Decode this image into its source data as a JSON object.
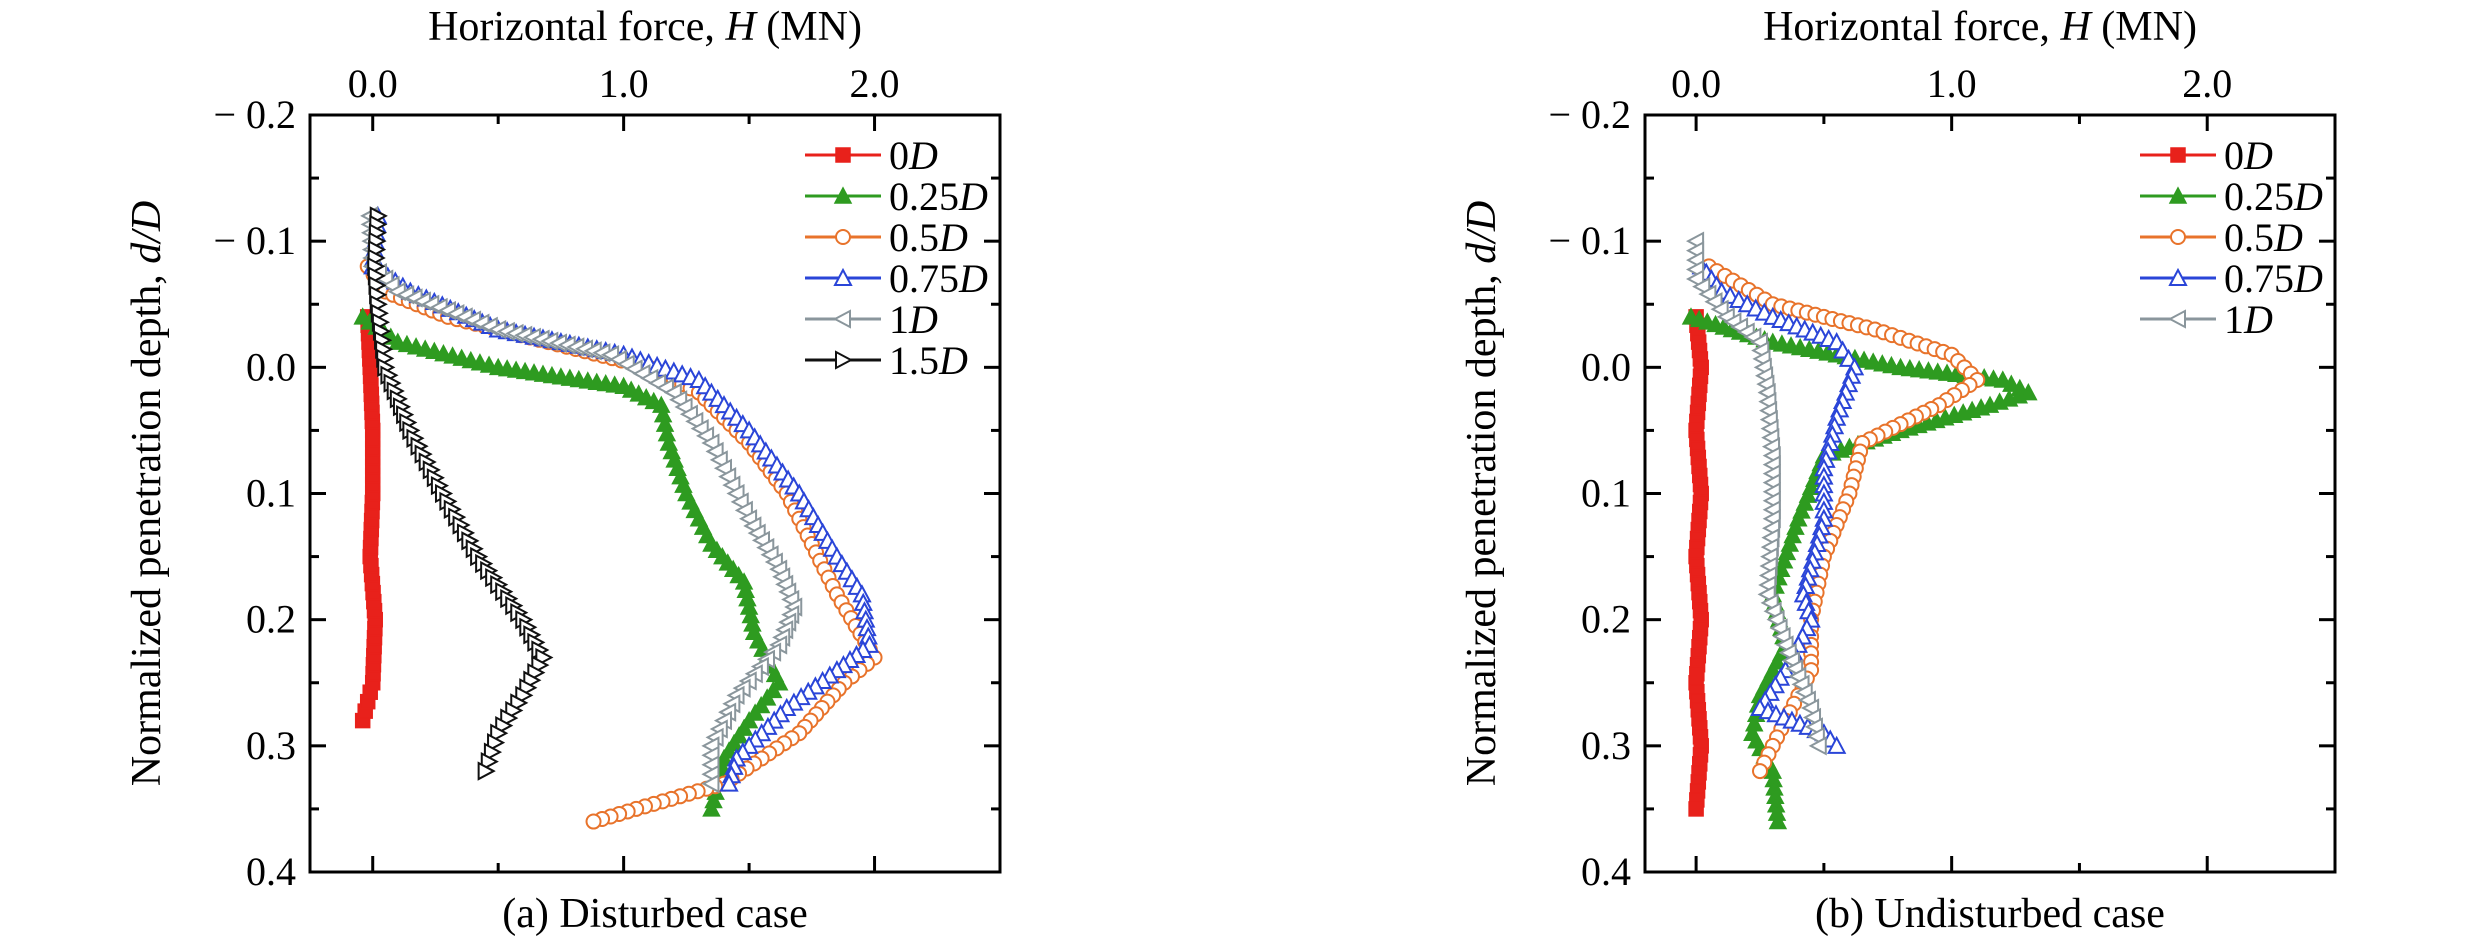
{
  "chart_data": [
    {
      "type": "line",
      "caption": "(a) Disturbed case",
      "xlabel": "Horizontal force, H (MN)",
      "ylabel": "Normalized penetration depth, d/D",
      "xlim": [
        -0.25,
        2.5
      ],
      "ylim": [
        -0.2,
        0.4
      ],
      "x_axis_position": "top",
      "y_inverted": true,
      "xticks": [
        0.0,
        1.0,
        2.0
      ],
      "xtick_labels": [
        "0.0",
        "1.0",
        "2.0"
      ],
      "yticks": [
        -0.2,
        -0.1,
        0.0,
        0.1,
        0.2,
        0.3,
        0.4
      ],
      "ytick_labels": [
        "− 0.2",
        "− 0.1",
        "0.0",
        "0.1",
        "0.2",
        "0.3",
        "0.4"
      ],
      "grid": false,
      "legend_position": "top-right",
      "series": [
        {
          "name": "0D",
          "color": "#e8211b",
          "marker": "square",
          "points": [
            [
              -0.04,
              0.28
            ],
            [
              0.0,
              0.25
            ],
            [
              0.01,
              0.2
            ],
            [
              -0.01,
              0.15
            ],
            [
              0.0,
              0.1
            ],
            [
              0.0,
              0.05
            ],
            [
              -0.01,
              0.0
            ],
            [
              -0.02,
              -0.04
            ]
          ]
        },
        {
          "name": "0.25D",
          "color": "#2e9b20",
          "marker": "triangle-up",
          "points": [
            [
              -0.04,
              -0.04
            ],
            [
              0.1,
              -0.02
            ],
            [
              0.5,
              0.0
            ],
            [
              1.0,
              0.015
            ],
            [
              1.15,
              0.03
            ],
            [
              1.18,
              0.06
            ],
            [
              1.25,
              0.1
            ],
            [
              1.35,
              0.14
            ],
            [
              1.48,
              0.17
            ],
            [
              1.52,
              0.21
            ],
            [
              1.62,
              0.25
            ],
            [
              1.5,
              0.28
            ],
            [
              1.4,
              0.31
            ],
            [
              1.35,
              0.35
            ]
          ]
        },
        {
          "name": "0.5D",
          "color": "#e8732b",
          "marker": "circle-open",
          "points": [
            [
              -0.02,
              -0.08
            ],
            [
              0.05,
              -0.06
            ],
            [
              0.3,
              -0.04
            ],
            [
              0.7,
              -0.02
            ],
            [
              1.1,
              0.0
            ],
            [
              1.3,
              0.02
            ],
            [
              1.5,
              0.06
            ],
            [
              1.65,
              0.1
            ],
            [
              1.75,
              0.14
            ],
            [
              1.85,
              0.18
            ],
            [
              2.0,
              0.23
            ],
            [
              1.88,
              0.25
            ],
            [
              1.7,
              0.29
            ],
            [
              1.4,
              0.33
            ],
            [
              1.05,
              0.35
            ],
            [
              0.88,
              0.36
            ]
          ]
        },
        {
          "name": "0.75D",
          "color": "#2a45d8",
          "marker": "triangle-up-open",
          "points": [
            [
              0.02,
              -0.12
            ],
            [
              0.0,
              -0.08
            ],
            [
              0.15,
              -0.06
            ],
            [
              0.5,
              -0.03
            ],
            [
              1.0,
              -0.01
            ],
            [
              1.3,
              0.01
            ],
            [
              1.5,
              0.05
            ],
            [
              1.7,
              0.1
            ],
            [
              1.85,
              0.15
            ],
            [
              1.95,
              0.18
            ],
            [
              1.98,
              0.22
            ],
            [
              1.85,
              0.24
            ],
            [
              1.65,
              0.27
            ],
            [
              1.45,
              0.31
            ],
            [
              1.42,
              0.33
            ]
          ]
        },
        {
          "name": "1D",
          "color": "#8a969c",
          "marker": "triangle-left-open",
          "points": [
            [
              -0.01,
              -0.12
            ],
            [
              0.0,
              -0.08
            ],
            [
              0.1,
              -0.06
            ],
            [
              0.5,
              -0.03
            ],
            [
              0.95,
              -0.01
            ],
            [
              1.2,
              0.02
            ],
            [
              1.35,
              0.06
            ],
            [
              1.5,
              0.12
            ],
            [
              1.62,
              0.16
            ],
            [
              1.68,
              0.19
            ],
            [
              1.62,
              0.22
            ],
            [
              1.45,
              0.26
            ],
            [
              1.35,
              0.3
            ],
            [
              1.35,
              0.33
            ]
          ]
        },
        {
          "name": "1.5D",
          "color": "#111111",
          "marker": "triangle-right-open",
          "points": [
            [
              0.02,
              -0.12
            ],
            [
              0.01,
              -0.08
            ],
            [
              0.02,
              -0.05
            ],
            [
              0.05,
              0.0
            ],
            [
              0.15,
              0.05
            ],
            [
              0.28,
              0.1
            ],
            [
              0.42,
              0.15
            ],
            [
              0.6,
              0.2
            ],
            [
              0.68,
              0.23
            ],
            [
              0.6,
              0.26
            ],
            [
              0.5,
              0.29
            ],
            [
              0.45,
              0.32
            ]
          ]
        }
      ]
    },
    {
      "type": "line",
      "caption": "(b) Undisturbed case",
      "xlabel": "Horizontal force, H (MN)",
      "ylabel": "Normalized penetration depth, d/D",
      "xlim": [
        -0.2,
        2.5
      ],
      "ylim": [
        -0.2,
        0.4
      ],
      "x_axis_position": "top",
      "y_inverted": true,
      "xticks": [
        0.0,
        1.0,
        2.0
      ],
      "xtick_labels": [
        "0.0",
        "1.0",
        "2.0"
      ],
      "yticks": [
        -0.2,
        -0.1,
        0.0,
        0.1,
        0.2,
        0.3,
        0.4
      ],
      "ytick_labels": [
        "− 0.2",
        "− 0.1",
        "0.0",
        "0.1",
        "0.2",
        "0.3",
        "0.4"
      ],
      "grid": false,
      "legend_position": "top-right",
      "series": [
        {
          "name": "0D",
          "color": "#e8211b",
          "marker": "square",
          "points": [
            [
              0.0,
              -0.04
            ],
            [
              0.02,
              0.0
            ],
            [
              0.0,
              0.05
            ],
            [
              0.02,
              0.1
            ],
            [
              0.0,
              0.15
            ],
            [
              0.02,
              0.2
            ],
            [
              0.0,
              0.25
            ],
            [
              0.02,
              0.3
            ],
            [
              0.0,
              0.35
            ]
          ]
        },
        {
          "name": "0.25D",
          "color": "#2e9b20",
          "marker": "triangle-up",
          "points": [
            [
              -0.02,
              -0.04
            ],
            [
              0.3,
              -0.02
            ],
            [
              0.8,
              0.0
            ],
            [
              1.2,
              0.01
            ],
            [
              1.3,
              0.02
            ],
            [
              1.15,
              0.03
            ],
            [
              0.8,
              0.05
            ],
            [
              0.5,
              0.07
            ],
            [
              0.4,
              0.12
            ],
            [
              0.3,
              0.18
            ],
            [
              0.35,
              0.22
            ],
            [
              0.25,
              0.26
            ],
            [
              0.22,
              0.29
            ],
            [
              0.3,
              0.32
            ],
            [
              0.32,
              0.36
            ]
          ]
        },
        {
          "name": "0.5D",
          "color": "#e8732b",
          "marker": "circle-open",
          "points": [
            [
              0.05,
              -0.08
            ],
            [
              0.3,
              -0.05
            ],
            [
              0.7,
              -0.03
            ],
            [
              1.0,
              -0.01
            ],
            [
              1.1,
              0.01
            ],
            [
              0.95,
              0.03
            ],
            [
              0.65,
              0.06
            ],
            [
              0.6,
              0.1
            ],
            [
              0.5,
              0.15
            ],
            [
              0.45,
              0.2
            ],
            [
              0.45,
              0.24
            ],
            [
              0.35,
              0.28
            ],
            [
              0.25,
              0.32
            ]
          ]
        },
        {
          "name": "0.75D",
          "color": "#2a45d8",
          "marker": "triangle-up-open",
          "points": [
            [
              0.02,
              -0.08
            ],
            [
              0.1,
              -0.06
            ],
            [
              0.3,
              -0.04
            ],
            [
              0.55,
              -0.02
            ],
            [
              0.62,
              0.0
            ],
            [
              0.55,
              0.04
            ],
            [
              0.5,
              0.08
            ],
            [
              0.5,
              0.12
            ],
            [
              0.42,
              0.18
            ],
            [
              0.45,
              0.2
            ],
            [
              0.35,
              0.24
            ],
            [
              0.25,
              0.27
            ],
            [
              0.5,
              0.29
            ],
            [
              0.55,
              0.3
            ]
          ]
        },
        {
          "name": "1D",
          "color": "#8a969c",
          "marker": "triangle-left-open",
          "points": [
            [
              0.0,
              -0.1
            ],
            [
              0.0,
              -0.07
            ],
            [
              0.12,
              -0.04
            ],
            [
              0.25,
              -0.02
            ],
            [
              0.28,
              0.02
            ],
            [
              0.3,
              0.07
            ],
            [
              0.3,
              0.12
            ],
            [
              0.28,
              0.18
            ],
            [
              0.35,
              0.22
            ],
            [
              0.45,
              0.27
            ],
            [
              0.48,
              0.3
            ]
          ]
        }
      ]
    }
  ]
}
